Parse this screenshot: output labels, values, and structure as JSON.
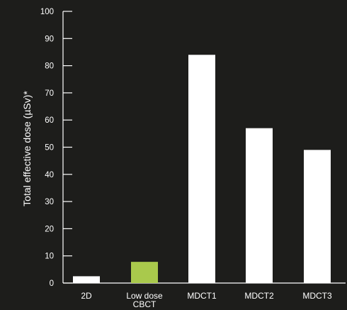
{
  "chart_data": {
    "type": "bar",
    "title": "",
    "xlabel": "",
    "ylabel": "Total effective dose (µSv)*",
    "ylim": [
      0,
      100
    ],
    "yticks": [
      0,
      10,
      20,
      30,
      40,
      50,
      60,
      70,
      80,
      90,
      100
    ],
    "grid": false,
    "categories": [
      "2D",
      "Low dose\nCBCT",
      "MDCT1",
      "MDCT2",
      "MDCT3"
    ],
    "values": [
      2.5,
      7.8,
      84,
      57,
      49
    ],
    "colors": [
      "#ffffff",
      "#a9c94c",
      "#ffffff",
      "#ffffff",
      "#ffffff"
    ]
  },
  "colors": {
    "background": "#1d1d1b",
    "axis": "#ffffff",
    "highlight": "#a9c94c"
  }
}
